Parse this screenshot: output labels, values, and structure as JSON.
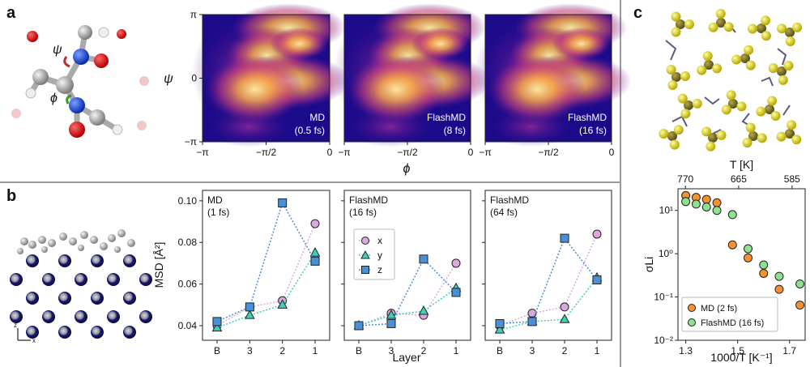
{
  "panel_letters": [
    "a",
    "b",
    "c"
  ],
  "chart_data": [
    {
      "type": "heatmap",
      "panel": "a",
      "xlabel": "ϕ",
      "ylabel": "ψ",
      "xticks": [
        "−π",
        "−π/2",
        "0"
      ],
      "yticks": [
        "π",
        "0",
        "−π"
      ],
      "xlim": [
        -3.1416,
        0
      ],
      "ylim": [
        -3.1416,
        3.1416
      ],
      "subplots": [
        {
          "label_line1": "MD",
          "label_line2": "(0.5 fs)"
        },
        {
          "label_line1": "FlashMD",
          "label_line2": "(8 fs)"
        },
        {
          "label_line1": "FlashMD",
          "label_line2": "(16 fs)"
        }
      ],
      "colors": {
        "background": "#1b0a8a",
        "low": "#7b1aa3",
        "mid": "#d44f6c",
        "high": "#fbd45a"
      }
    },
    {
      "type": "scatter",
      "panel": "b",
      "categories": [
        "B",
        "3",
        "2",
        "1"
      ],
      "xlabel": "Layer",
      "ylabel": "MSD [Å²]",
      "ylim": [
        0.033,
        0.105
      ],
      "yticks": [
        0.04,
        0.06,
        0.08,
        0.1
      ],
      "ytick_labels": [
        "0.04",
        "0.06",
        "0.08",
        "0.10"
      ],
      "legend": [
        "x",
        "y",
        "z"
      ],
      "legend_placement": "center-left of middle subplot",
      "colors": {
        "x": "#dba8e0",
        "y": "#3fd0b5",
        "z": "#4a90d9"
      },
      "subplots": [
        {
          "label_line1": "MD",
          "label_line2": "(1 fs)",
          "series": [
            {
              "name": "x",
              "values": [
                0.04,
                0.049,
                0.052,
                0.089
              ]
            },
            {
              "name": "y",
              "values": [
                0.039,
                0.045,
                0.05,
                0.075
              ]
            },
            {
              "name": "z",
              "values": [
                0.042,
                0.049,
                0.099,
                0.071
              ]
            }
          ]
        },
        {
          "label_line1": "FlashMD",
          "label_line2": "(16 fs)",
          "series": [
            {
              "name": "x",
              "values": [
                0.04,
                0.046,
                0.045,
                0.07
              ]
            },
            {
              "name": "y",
              "values": [
                0.04,
                0.045,
                0.047,
                0.058
              ]
            },
            {
              "name": "z",
              "values": [
                0.04,
                0.041,
                0.072,
                0.056
              ]
            }
          ]
        },
        {
          "label_line1": "FlashMD",
          "label_line2": "(64 fs)",
          "series": [
            {
              "name": "x",
              "values": [
                0.04,
                0.046,
                0.049,
                0.084
              ]
            },
            {
              "name": "y",
              "values": [
                0.038,
                0.042,
                0.043,
                0.063
              ]
            },
            {
              "name": "z",
              "values": [
                0.041,
                0.042,
                0.082,
                0.062
              ]
            }
          ]
        }
      ]
    },
    {
      "type": "scatter",
      "panel": "c",
      "xlabel": "1000/T [K⁻¹]",
      "ylabel": "σLi",
      "top_xlabel": "T [K]",
      "xlim": [
        1.27,
        1.76
      ],
      "ylim_log10": [
        -2,
        1.5
      ],
      "xticks": [
        1.3,
        1.5,
        1.7
      ],
      "xtick_labels": [
        "1.3",
        "1.5",
        "1.7"
      ],
      "top_xticks_T": [
        770,
        665,
        585
      ],
      "yticks_log10": [
        -2,
        -1,
        0,
        1
      ],
      "ytick_labels": [
        "10⁻²",
        "10⁻¹",
        "10⁰",
        "10¹"
      ],
      "legend_placement": "lower-left",
      "colors": {
        "md": "#f5912e",
        "flash": "#8fe08f"
      },
      "series": [
        {
          "name": "MD (2 fs)",
          "x": [
            1.3,
            1.34,
            1.38,
            1.42,
            1.48,
            1.54,
            1.6,
            1.66,
            1.74
          ],
          "y": [
            22,
            20,
            18,
            15,
            1.6,
            0.8,
            0.35,
            0.15,
            0.065
          ]
        },
        {
          "name": "FlashMD (16 fs)",
          "x": [
            1.3,
            1.34,
            1.38,
            1.42,
            1.48,
            1.54,
            1.6,
            1.66,
            1.74
          ],
          "y": [
            16,
            14,
            12,
            10,
            8,
            1.3,
            0.55,
            0.3,
            0.2
          ]
        }
      ]
    }
  ]
}
